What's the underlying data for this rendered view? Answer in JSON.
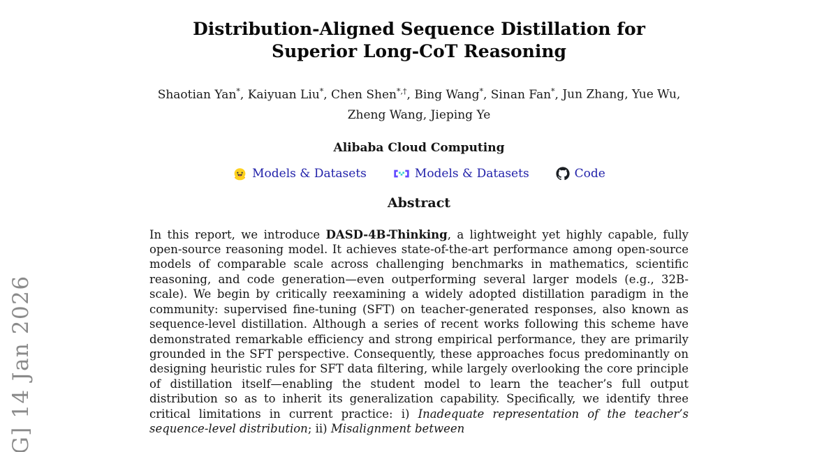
{
  "watermark": {
    "text": "G]  14 Jan 2026",
    "color": "#8a8a8a"
  },
  "title": "Distribution-Aligned Sequence Distillation for Superior Long-CoT Reasoning",
  "authors": [
    {
      "name": "Shaotian Yan",
      "mark": "*"
    },
    {
      "name": "Kaiyuan Liu",
      "mark": "*"
    },
    {
      "name": "Chen Shen",
      "mark": "*,†"
    },
    {
      "name": "Bing Wang",
      "mark": "*"
    },
    {
      "name": "Sinan Fan",
      "mark": "*"
    },
    {
      "name": "Jun Zhang",
      "mark": ""
    },
    {
      "name": "Yue Wu",
      "mark": "",
      "break_after": true
    },
    {
      "name": "Zheng Wang",
      "mark": ""
    },
    {
      "name": "Jieping Ye",
      "mark": ""
    }
  ],
  "affiliation": "Alibaba Cloud Computing",
  "link_color": "#2222aa",
  "links": [
    {
      "icon": "huggingface-icon",
      "label": "Models & Datasets"
    },
    {
      "icon": "modelscope-icon",
      "label": "Models & Datasets"
    },
    {
      "icon": "github-icon",
      "label": "Code"
    }
  ],
  "icon_colors": {
    "huggingface_yellow": "#FFD21E",
    "modelscope_purple": "#624AFF",
    "modelscope_teal": "#36CFD1",
    "github_black": "#1b1f23"
  },
  "abstract": {
    "heading": "Abstract",
    "seg1": "In this report, we introduce ",
    "seg2": "DASD-4B-Thinking",
    "seg3": ", a lightweight yet highly capable, fully open-source reasoning model.  It achieves state-of-the-art performance among open-source models of comparable scale across challenging benchmarks in mathematics, scientific reasoning, and code generation—even outperforming several larger models (e.g., 32B-scale).  We begin by critically reexamining a widely adopted distillation paradigm in the community: supervised fine-tuning (SFT) on teacher-generated responses, also known as sequence-level distillation.  Although a series of recent works following this scheme have demonstrated remarkable efficiency and strong empirical performance, they are primarily grounded in the SFT perspective.  Consequently, these approaches focus predominantly on designing heuristic rules for SFT data filtering, while largely overlooking the core principle of distillation itself—enabling the student model to learn the teacher’s full output distribution so as to inherit its generalization capability.  Specifically, we identify three critical limitations in current practice: i) ",
    "seg4": "Inadequate representation of the teacher’s sequence-level distribution",
    "seg5": "; ii) ",
    "seg6": "Misalignment between"
  }
}
